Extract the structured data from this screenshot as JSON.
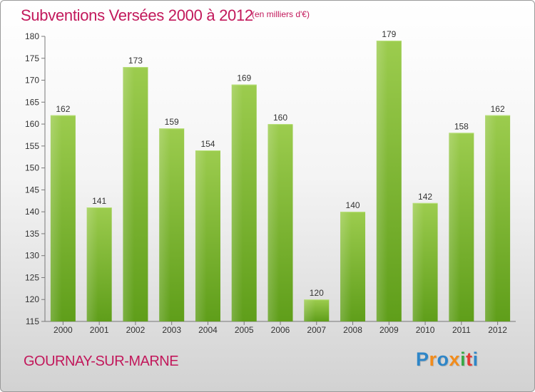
{
  "header": {
    "title": "Subventions Versées 2000 à 2012",
    "subtitle": "(en milliers d'€)"
  },
  "footer": {
    "commune": "GOURNAY-SUR-MARNE",
    "logo": [
      "P",
      "r",
      "o",
      "x",
      "i",
      "t",
      "i"
    ]
  },
  "colors": {
    "bar_top": "#9ccc4e",
    "bar_bottom": "#5f9e1a",
    "title": "#c2185b"
  },
  "chart_data": {
    "type": "bar",
    "categories": [
      "2000",
      "2001",
      "2002",
      "2003",
      "2004",
      "2005",
      "2006",
      "2007",
      "2008",
      "2009",
      "2010",
      "2011",
      "2012"
    ],
    "values": [
      162,
      141,
      173,
      159,
      154,
      169,
      160,
      120,
      140,
      179,
      142,
      158,
      162
    ],
    "title": "Subventions Versées 2000 à 2012",
    "subtitle": "(en milliers d'€)",
    "ylim": [
      115,
      180
    ],
    "yticks": [
      115,
      120,
      125,
      130,
      135,
      140,
      145,
      150,
      155,
      160,
      165,
      170,
      175,
      180
    ],
    "grid": false,
    "data_labels": true
  }
}
